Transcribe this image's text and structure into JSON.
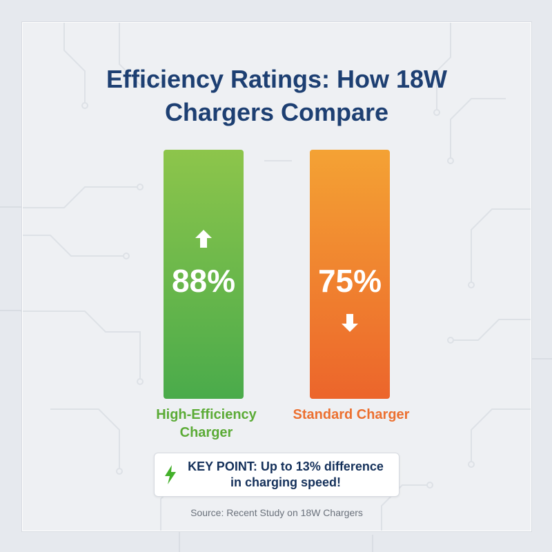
{
  "title": {
    "line1": "Efficiency Ratings: How 18W",
    "line2": "Chargers Compare"
  },
  "chart_data": {
    "type": "bar",
    "title": "Efficiency Ratings: How 18W Chargers Compare",
    "categories": [
      "High-Efficiency Charger",
      "Standard Charger"
    ],
    "category_lines": [
      [
        "High-Efficiency",
        "Charger"
      ],
      [
        "Standard Charger"
      ]
    ],
    "values": [
      88,
      75
    ],
    "value_labels": [
      "88%",
      "75%"
    ],
    "indicators": [
      "arrow-up-icon",
      "arrow-down-icon"
    ],
    "colors": [
      {
        "top": "#8dc54b",
        "bottom": "#4aab4b",
        "label": "#5bab36"
      },
      {
        "top": "#f4a234",
        "bottom": "#ec652b",
        "label": "#ec7030"
      }
    ],
    "xlabel": "",
    "ylabel": "",
    "grid": false,
    "legend": "none"
  },
  "key_point": {
    "icon": "lightning-bolt-icon",
    "line1": "KEY POINT: Up to 13% difference",
    "line2": "in charging speed!"
  },
  "source": "Source: Recent Study on 18W Chargers",
  "colors": {
    "title": "#1d3f72",
    "background": "#eef0f3",
    "bolt": "#43b02a"
  }
}
